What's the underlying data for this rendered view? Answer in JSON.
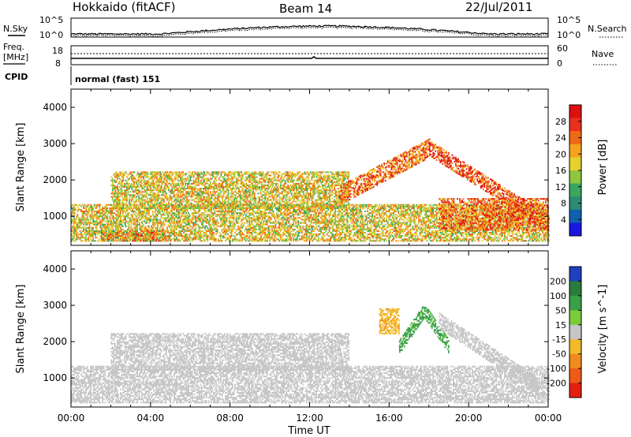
{
  "header": {
    "station": "Hokkaido (fitACF)",
    "beam": "Beam 14",
    "date": "22/Jul/2011"
  },
  "status_panels": {
    "nsky_label": "N.Sky",
    "nsearch_label": "N.Search",
    "nsky_ticks": [
      "10^5",
      "10^0"
    ],
    "freq_label_top": "Freq.",
    "freq_label_unit": "[MHz]",
    "freq_ticks": [
      "18",
      "8"
    ],
    "nave_label": "Nave",
    "nave_ticks": [
      "60",
      "0"
    ],
    "cpid_label": "CPID",
    "cpid_text": "normal (fast) 151"
  },
  "chart_data": [
    {
      "type": "heatmap",
      "parameter": "power",
      "ylabel": "Slant Range [km]",
      "ylim": [
        200,
        4500
      ],
      "yticks": [
        1000,
        2000,
        3000,
        4000
      ],
      "xlim_hours": [
        0,
        24
      ],
      "colorbar": {
        "label": "Power [dB]",
        "ticks": [
          4,
          8,
          12,
          16,
          20,
          24,
          28
        ],
        "colors": [
          "#1818e0",
          "#1060b0",
          "#2e8a73",
          "#3aa660",
          "#8ec63f",
          "#e3d22b",
          "#f5a21e",
          "#ef6a18",
          "#e8301c",
          "#dd1010"
        ],
        "range": [
          0,
          32
        ]
      },
      "features": [
        {
          "name": "ground-scatter-band",
          "t_start": 1.5,
          "t_end": 5.0,
          "range_km": [
            300,
            600
          ],
          "level": 28
        },
        {
          "name": "near-range-band",
          "t_start": 0.0,
          "t_end": 24.0,
          "range_km": [
            300,
            1300
          ],
          "level": 18
        },
        {
          "name": "mid-band",
          "t_start": 2.0,
          "t_end": 14.0,
          "range_km": [
            1200,
            2200
          ],
          "level": 18
        },
        {
          "name": "rising-arc",
          "t_start": 13.5,
          "t_end": 18.0,
          "range_km": [
            1600,
            2900
          ],
          "level": 24
        },
        {
          "name": "descending-arc",
          "t_start": 18.0,
          "t_end": 23.5,
          "range_km": [
            1000,
            2900
          ],
          "level": 26
        },
        {
          "name": "late-evening",
          "t_start": 18.5,
          "t_end": 24.0,
          "range_km": [
            600,
            1500
          ],
          "level": 24
        }
      ]
    },
    {
      "type": "heatmap",
      "parameter": "velocity",
      "ylabel": "Slant Range [km]",
      "ylim": [
        200,
        4500
      ],
      "yticks": [
        1000,
        2000,
        3000,
        4000
      ],
      "xlim_hours": [
        0,
        24
      ],
      "xticks": [
        "00:00",
        "04:00",
        "08:00",
        "12:00",
        "16:00",
        "20:00",
        "00:00"
      ],
      "xlabel": "Time UT",
      "colorbar": {
        "label": "Velocity [m s^-1]",
        "ticks": [
          "200",
          "100",
          "50",
          "15",
          "-15",
          "-50",
          "-100",
          "-200"
        ],
        "colors": [
          "#2040c0",
          "#2a7c3a",
          "#3aa048",
          "#7acb3a",
          "#c6c6c6",
          "#f2ba2a",
          "#f28a1e",
          "#ee5a18",
          "#e32010"
        ]
      },
      "features": [
        {
          "name": "ground-scatter-grey",
          "t_start": 0.0,
          "t_end": 24.0,
          "range_km": [
            300,
            1300
          ],
          "level": 0
        },
        {
          "name": "mid-grey",
          "t_start": 2.0,
          "t_end": 14.0,
          "range_km": [
            1200,
            2200
          ],
          "level": 0
        },
        {
          "name": "green-arc",
          "t_start": 16.5,
          "t_end": 19.0,
          "range_km": [
            1900,
            2900
          ],
          "level": 60
        },
        {
          "name": "orange-patch",
          "t_start": 15.5,
          "t_end": 16.5,
          "range_km": [
            2200,
            2900
          ],
          "level": -40
        },
        {
          "name": "grey-descending",
          "t_start": 18.5,
          "t_end": 23.5,
          "range_km": [
            800,
            2600
          ],
          "level": 0
        }
      ]
    }
  ]
}
